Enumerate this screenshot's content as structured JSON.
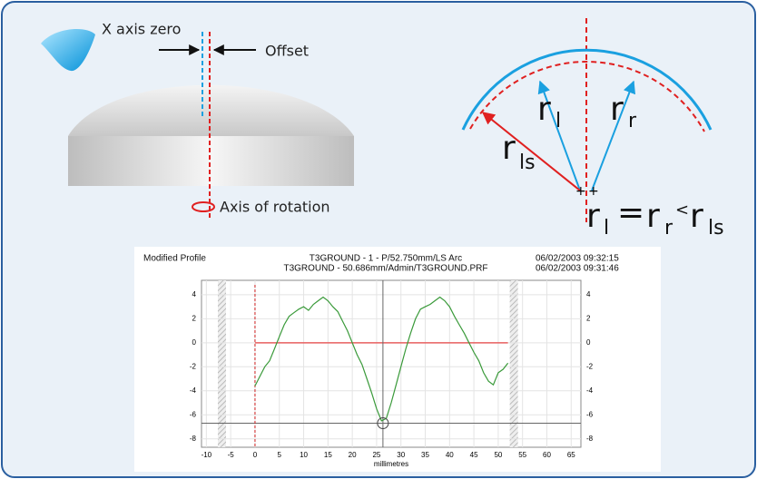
{
  "diagram": {
    "x_axis_zero": "X axis zero",
    "offset": "Offset",
    "axis_of_rotation": "Axis of rotation",
    "radius_labels": {
      "r_l": [
        "r",
        "l"
      ],
      "r_r": [
        "r",
        "r"
      ],
      "r_ls": [
        "r",
        "ls"
      ]
    },
    "equation": [
      "r",
      "l",
      "=",
      "r",
      "r",
      "<",
      "r",
      "ls"
    ]
  },
  "chart_data": {
    "type": "line",
    "title": "Modified Profile",
    "header_lines": [
      "T3GROUND - 1 - P/52.750mm/LS Arc",
      "T3GROUND - 50.686mm/Admin/T3GROUND.PRF"
    ],
    "timestamps": [
      "06/02/2003 09:32:15",
      "06/02/2003 09:31:46"
    ],
    "x_label": "millimetres",
    "x": [
      0,
      1,
      2,
      3,
      4,
      5,
      6,
      7,
      8,
      9,
      10,
      11,
      12,
      13,
      14,
      15,
      16,
      17,
      18,
      19,
      20,
      21,
      22,
      23,
      24,
      25,
      26,
      27,
      28,
      29,
      30,
      31,
      32,
      33,
      34,
      35,
      36,
      37,
      38,
      39,
      40,
      41,
      42,
      43,
      44,
      45,
      46,
      47,
      48,
      49,
      50,
      51,
      52
    ],
    "series": [
      {
        "color": "#3a9a3a",
        "values": [
          -3.6,
          -2.8,
          -2,
          -1.5,
          -0.5,
          0.5,
          1.5,
          2.2,
          2.5,
          2.8,
          3,
          2.7,
          3.2,
          3.5,
          3.8,
          3.5,
          3,
          2.6,
          1.8,
          1,
          0,
          -1,
          -1.8,
          -3,
          -4.2,
          -5.5,
          -6.5,
          -6.3,
          -5,
          -3.5,
          -2,
          -0.5,
          0.8,
          2,
          2.8,
          3,
          3.2,
          3.5,
          3.8,
          3.5,
          3,
          2.2,
          1.5,
          0.8,
          0,
          -0.8,
          -1.5,
          -2.5,
          -3.2,
          -3.5,
          -2.5,
          -2.2,
          -1.7
        ]
      }
    ],
    "hlines": [
      {
        "y": 0,
        "color": "#e86060"
      },
      {
        "y": -6.7,
        "color": "#666666"
      }
    ],
    "vlines": [
      {
        "x": 26.3,
        "color": "#666666"
      },
      {
        "x": 0,
        "color": "#d02020"
      }
    ],
    "xlim": [
      -11,
      67
    ],
    "ylim": [
      -8.7,
      5.2
    ],
    "xticks": [
      -10,
      -5,
      0,
      5,
      10,
      15,
      20,
      25,
      30,
      35,
      40,
      45,
      50,
      55,
      60,
      65
    ],
    "yticks": [
      -8,
      -6,
      -4,
      -2,
      0,
      2,
      4
    ],
    "grid": true
  }
}
